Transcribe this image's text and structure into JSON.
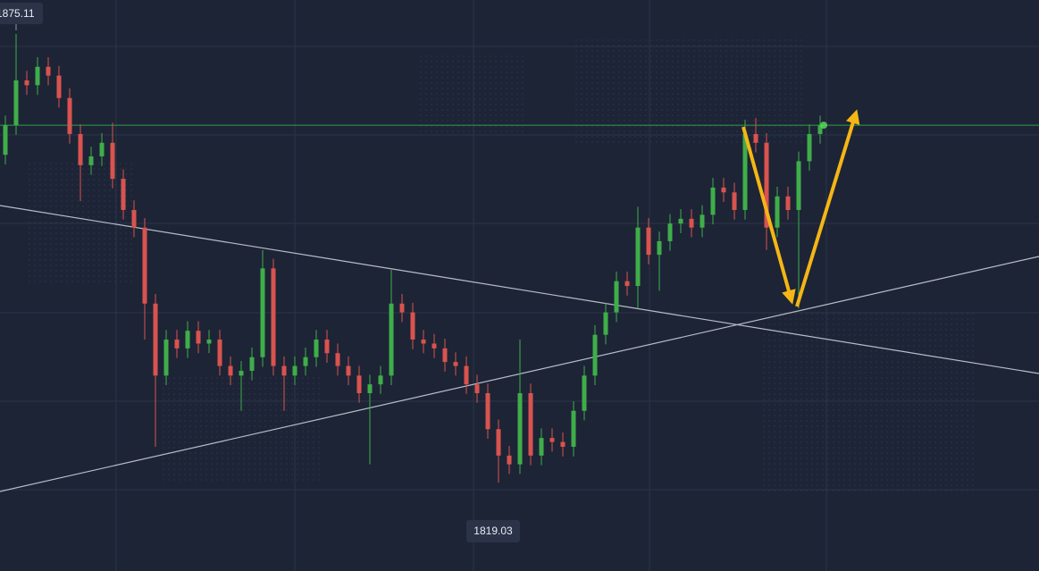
{
  "chart_data": {
    "type": "candlestick",
    "open": [
      1860.0,
      1863.7,
      1869.3,
      1868.7,
      1871.0,
      1869.9,
      1867.1,
      1862.6,
      1858.7,
      1859.8,
      1861.5,
      1857.0,
      1853.1,
      1850.9,
      1841.4,
      1832.4,
      1836.9,
      1835.8,
      1838.0,
      1836.4,
      1836.9,
      1833.6,
      1832.4,
      1833.0,
      1834.7,
      1845.8,
      1833.6,
      1832.4,
      1833.6,
      1834.7,
      1836.9,
      1835.2,
      1833.6,
      1832.4,
      1830.2,
      1831.3,
      1832.4,
      1841.4,
      1840.3,
      1836.9,
      1836.4,
      1835.8,
      1834.1,
      1833.6,
      1831.3,
      1830.2,
      1825.7,
      1822.4,
      1821.3,
      1830.2,
      1822.4,
      1824.6,
      1824.1,
      1823.5,
      1828.0,
      1832.4,
      1837.5,
      1840.3,
      1844.2,
      1843.6,
      1850.9,
      1847.5,
      1849.2,
      1851.4,
      1852.0,
      1850.9,
      1852.5,
      1855.9,
      1855.3,
      1853.1,
      1862.6,
      1861.5,
      1850.9,
      1854.8,
      1853.1,
      1859.2,
      1862.6
    ],
    "high": [
      1864.9,
      1875.11,
      1870.5,
      1872.2,
      1872.2,
      1871.1,
      1868.3,
      1863.8,
      1861.0,
      1862.7,
      1864.0,
      1858.2,
      1854.3,
      1852.1,
      1842.6,
      1838.1,
      1838.1,
      1839.2,
      1839.2,
      1838.1,
      1838.1,
      1834.8,
      1834.2,
      1835.9,
      1848.1,
      1847.0,
      1834.8,
      1834.8,
      1835.9,
      1838.1,
      1838.1,
      1836.4,
      1834.8,
      1833.6,
      1832.5,
      1833.6,
      1845.6,
      1842.6,
      1841.5,
      1838.1,
      1837.6,
      1837.0,
      1835.3,
      1834.8,
      1832.5,
      1831.4,
      1826.9,
      1823.6,
      1836.9,
      1831.4,
      1825.8,
      1825.8,
      1825.3,
      1829.2,
      1833.6,
      1838.7,
      1841.5,
      1845.4,
      1845.4,
      1853.5,
      1852.1,
      1850.4,
      1852.6,
      1853.2,
      1853.2,
      1853.7,
      1857.1,
      1857.1,
      1856.5,
      1864.4,
      1864.6,
      1862.7,
      1856.0,
      1856.0,
      1860.4,
      1863.8,
      1864.9
    ],
    "low": [
      1858.8,
      1862.5,
      1867.5,
      1867.5,
      1868.7,
      1865.9,
      1861.4,
      1854.2,
      1857.5,
      1858.6,
      1855.8,
      1851.9,
      1849.7,
      1836.9,
      1823.5,
      1831.2,
      1834.6,
      1834.6,
      1835.2,
      1835.2,
      1832.4,
      1831.2,
      1828.0,
      1831.8,
      1833.5,
      1832.4,
      1828.0,
      1831.2,
      1832.4,
      1833.5,
      1834.0,
      1832.4,
      1831.2,
      1829.0,
      1821.3,
      1830.1,
      1831.2,
      1839.1,
      1835.7,
      1835.2,
      1834.6,
      1832.9,
      1832.4,
      1830.1,
      1829.0,
      1824.5,
      1819.03,
      1820.1,
      1820.1,
      1821.2,
      1821.2,
      1822.9,
      1822.3,
      1822.3,
      1826.8,
      1831.2,
      1836.3,
      1839.1,
      1842.4,
      1840.8,
      1846.3,
      1843.0,
      1848.0,
      1850.2,
      1849.7,
      1849.7,
      1851.3,
      1854.1,
      1851.9,
      1851.9,
      1860.3,
      1848.1,
      1849.7,
      1851.9,
      1840.8,
      1858.0,
      1861.4
    ],
    "close": [
      1863.7,
      1869.3,
      1868.7,
      1871.0,
      1869.9,
      1867.1,
      1862.6,
      1858.7,
      1859.8,
      1861.5,
      1857.0,
      1853.1,
      1850.9,
      1841.4,
      1832.4,
      1836.9,
      1835.8,
      1838.0,
      1836.4,
      1836.9,
      1833.6,
      1832.4,
      1833.0,
      1834.7,
      1845.8,
      1833.6,
      1832.4,
      1833.6,
      1834.7,
      1836.9,
      1835.2,
      1833.6,
      1832.4,
      1830.2,
      1831.3,
      1832.4,
      1841.4,
      1840.3,
      1836.9,
      1836.4,
      1835.8,
      1834.1,
      1833.6,
      1831.3,
      1830.2,
      1825.7,
      1822.4,
      1821.3,
      1830.2,
      1822.4,
      1824.6,
      1824.1,
      1823.5,
      1828.0,
      1832.4,
      1837.5,
      1840.3,
      1844.2,
      1843.6,
      1850.9,
      1847.5,
      1849.2,
      1851.4,
      1852.0,
      1850.9,
      1852.5,
      1855.9,
      1855.3,
      1853.1,
      1862.6,
      1861.5,
      1850.9,
      1854.8,
      1853.1,
      1859.2,
      1862.6,
      1863.7
    ],
    "ylim": [
      1807.97,
      1879.35
    ],
    "up_color": "#3fae49",
    "down_color": "#d9534f",
    "current_price": 1863.7,
    "price_line_color": "#2f9e44"
  }
}
